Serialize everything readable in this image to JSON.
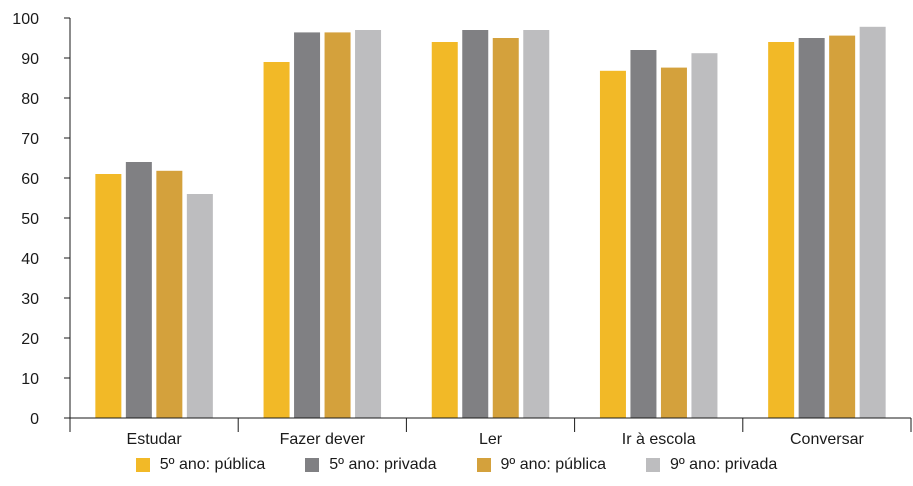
{
  "chart_data": {
    "type": "bar",
    "categories": [
      "Estudar",
      "Fazer dever",
      "Ler",
      "Ir à escola",
      "Conversar"
    ],
    "series": [
      {
        "name": "5º ano: pública",
        "color": "#F2B927",
        "values": [
          61,
          89,
          94,
          86.8,
          94
        ]
      },
      {
        "name": "5º ano: privada",
        "color": "#808083",
        "values": [
          64,
          96.4,
          97,
          92,
          95
        ]
      },
      {
        "name": "9º ano: pública",
        "color": "#D4A13C",
        "values": [
          61.8,
          96.4,
          95,
          87.6,
          95.6
        ]
      },
      {
        "name": "9º ano: privada",
        "color": "#BDBDBF",
        "values": [
          56,
          97,
          97,
          91.2,
          97.8
        ]
      }
    ],
    "ylim": [
      0,
      100
    ],
    "yticks": [
      "0",
      "10",
      "20",
      "30",
      "40",
      "50",
      "60",
      "70",
      "80",
      "90",
      "100"
    ],
    "grid": false,
    "legend_position": "bottom"
  }
}
